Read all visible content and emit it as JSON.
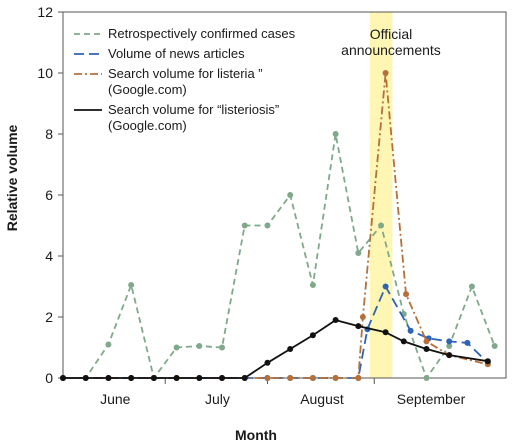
{
  "chart_data": {
    "type": "line",
    "xlabel": "Month",
    "ylabel": "Relative volume",
    "ylim": [
      0,
      12
    ],
    "yticks": [
      "0",
      "2",
      "4",
      "6",
      "8",
      "10",
      "12"
    ],
    "month_labels": [
      "June",
      "July",
      "August",
      "September"
    ],
    "annotation": [
      "Official",
      "announcements"
    ],
    "legend_position": "top-left",
    "series": [
      {
        "name": "Retrospectively confirmed cases",
        "color": "#7fa98a",
        "style": "dashed",
        "legend_lines": [
          "Retrospectively confirmed cases"
        ],
        "points": [
          [
            0,
            0
          ],
          [
            1,
            0
          ],
          [
            2,
            1.1
          ],
          [
            3,
            3.05
          ],
          [
            4,
            0
          ],
          [
            5,
            1.0
          ],
          [
            6,
            1.05
          ],
          [
            7,
            1.0
          ],
          [
            8,
            5.0
          ],
          [
            9,
            5.0
          ],
          [
            10,
            6.0
          ],
          [
            11,
            3.05
          ],
          [
            12,
            8.0
          ],
          [
            13,
            4.1
          ],
          [
            14,
            5.0
          ],
          [
            15,
            2.1
          ],
          [
            16,
            0
          ],
          [
            17,
            1.05
          ],
          [
            18,
            3.0
          ],
          [
            19,
            1.05
          ]
        ]
      },
      {
        "name": "Volume of news articles",
        "color": "#2e63b5",
        "style": "longdash",
        "legend_lines": [
          "Volume of news articles"
        ],
        "points": [
          [
            0,
            0
          ],
          [
            1,
            0
          ],
          [
            2,
            0
          ],
          [
            3,
            0
          ],
          [
            4,
            0
          ],
          [
            5,
            0
          ],
          [
            6,
            0
          ],
          [
            7,
            0
          ],
          [
            8,
            0
          ],
          [
            9,
            0
          ],
          [
            10,
            0
          ],
          [
            11,
            0
          ],
          [
            12,
            0
          ],
          [
            13,
            0
          ],
          [
            13.4,
            1.6
          ],
          [
            14.2,
            3.0
          ],
          [
            15.3,
            1.55
          ],
          [
            16.1,
            1.3
          ],
          [
            17,
            1.2
          ],
          [
            17.8,
            1.15
          ],
          [
            18.7,
            0.5
          ]
        ]
      },
      {
        "name": "Search volume for listeria ” (Google.com)",
        "color": "#b5703a",
        "style": "dashdot",
        "legend_lines": [
          "Search volume for listeria  ”",
          "(Google.com)"
        ],
        "points": [
          [
            0,
            0
          ],
          [
            1,
            0
          ],
          [
            2,
            0
          ],
          [
            3,
            0
          ],
          [
            4,
            0
          ],
          [
            5,
            0
          ],
          [
            6,
            0
          ],
          [
            7,
            0
          ],
          [
            8,
            0
          ],
          [
            9,
            0
          ],
          [
            10,
            0
          ],
          [
            11,
            0
          ],
          [
            12,
            0
          ],
          [
            13,
            0
          ],
          [
            13.2,
            2.0
          ],
          [
            14.2,
            10.0
          ],
          [
            15.1,
            2.75
          ],
          [
            16,
            1.2
          ],
          [
            17,
            0.75
          ],
          [
            18.7,
            0.45
          ]
        ]
      },
      {
        "name": "Search volume for “listeriosis” (Google.com)",
        "color": "#111111",
        "style": "solid",
        "legend_lines": [
          "Search volume for “listeriosis”",
          "(Google.com)"
        ],
        "points": [
          [
            0,
            0
          ],
          [
            1,
            0
          ],
          [
            2,
            0
          ],
          [
            3,
            0
          ],
          [
            4,
            0
          ],
          [
            5,
            0
          ],
          [
            6,
            0
          ],
          [
            7,
            0
          ],
          [
            8,
            0
          ],
          [
            9,
            0.5
          ],
          [
            10,
            0.95
          ],
          [
            11,
            1.4
          ],
          [
            12,
            1.9
          ],
          [
            13,
            1.7
          ],
          [
            14.2,
            1.5
          ],
          [
            15,
            1.2
          ],
          [
            16,
            0.95
          ],
          [
            17,
            0.75
          ],
          [
            18.7,
            0.55
          ]
        ]
      }
    ],
    "highlight_band": {
      "x_from": 13.5,
      "x_to": 14.5,
      "color": "#fff6b3"
    }
  }
}
